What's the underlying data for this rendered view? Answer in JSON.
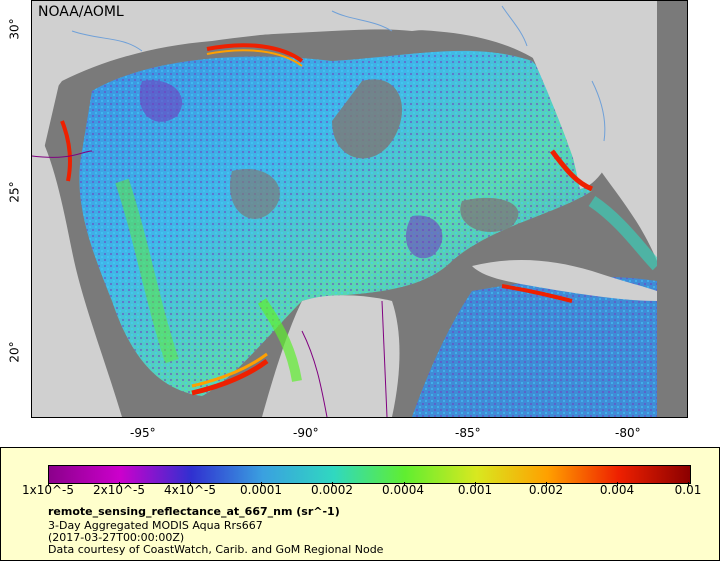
{
  "map": {
    "agency": "NOAA/AOML",
    "lon_labels": [
      "-95°",
      "-90°",
      "-85°",
      "-80°"
    ],
    "lat_labels": [
      "30°",
      "25°",
      "20°"
    ],
    "land_color": "#d0d0d0",
    "nodata_color": "#7a7a7a",
    "border_color": "#800080",
    "river_color": "#6fa0d8"
  },
  "legend": {
    "tick_labels": [
      "1x10^-5",
      "2x10^-5",
      "4x10^-5",
      "0.0001",
      "0.0002",
      "0.0004",
      "0.001",
      "0.002",
      "0.004",
      "0.01"
    ],
    "variable": "remote_sensing_reflectance_at_667_nm (sr^-1)",
    "product": "3-Day Aggregated MODIS Aqua Rrs667",
    "time": "(2017-03-27T00:00:00Z)",
    "credit": "Data courtesy of CoastWatch, Carib. and GoM Regional Node",
    "colors": [
      "#8b008b",
      "#cc00cc",
      "#3030d0",
      "#3aa0e0",
      "#30d8c0",
      "#60ee30",
      "#d8e820",
      "#ffa000",
      "#ee2000",
      "#8b0000"
    ]
  }
}
